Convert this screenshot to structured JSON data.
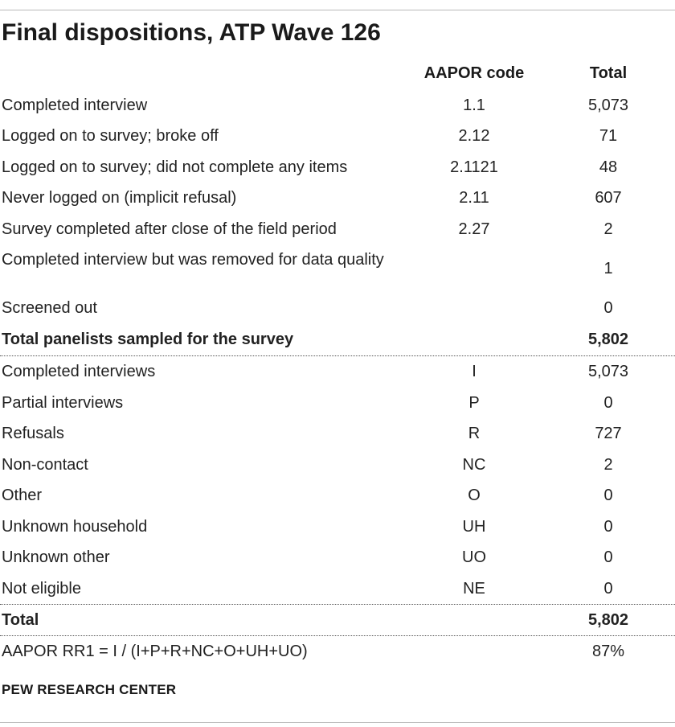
{
  "title": "Final dispositions, ATP Wave 126",
  "headers": {
    "code": "AAPOR code",
    "total": "Total"
  },
  "section1": [
    {
      "label": "Completed interview",
      "code": "1.1",
      "total": "5,073"
    },
    {
      "label": "Logged on to survey; broke off",
      "code": "2.12",
      "total": "71"
    },
    {
      "label": "Logged on to survey; did not complete any items",
      "code": "2.1121",
      "total": "48"
    },
    {
      "label": "Never logged on (implicit refusal)",
      "code": "2.11",
      "total": "607"
    },
    {
      "label": "Survey completed after close of the field period",
      "code": "2.27",
      "total": "2"
    },
    {
      "label": "Completed interview but was removed for data quality",
      "code": "",
      "total": "1"
    },
    {
      "label": "Screened out",
      "code": "",
      "total": "0"
    }
  ],
  "subtotal": {
    "label": "Total panelists sampled for the survey",
    "total": "5,802"
  },
  "section2": [
    {
      "label": "Completed interviews",
      "code": "I",
      "total": "5,073"
    },
    {
      "label": "Partial interviews",
      "code": "P",
      "total": "0"
    },
    {
      "label": "Refusals",
      "code": "R",
      "total": "727"
    },
    {
      "label": "Non-contact",
      "code": "NC",
      "total": "2"
    },
    {
      "label": "Other",
      "code": "O",
      "total": "0"
    },
    {
      "label": "Unknown household",
      "code": "UH",
      "total": "0"
    },
    {
      "label": "Unknown other",
      "code": "UO",
      "total": "0"
    },
    {
      "label": "Not eligible",
      "code": "NE",
      "total": "0"
    }
  ],
  "grand_total": {
    "label": "Total",
    "total": "5,802"
  },
  "response_rate": {
    "label": "AAPOR RR1 = I / (I+P+R+NC+O+UH+UO)",
    "total": "87%"
  },
  "footer": "PEW RESEARCH CENTER"
}
